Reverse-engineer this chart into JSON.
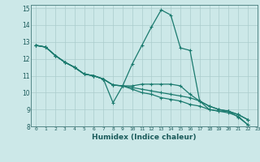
{
  "xlabel": "Humidex (Indice chaleur)",
  "ylabel": "",
  "bg_color": "#cce8e8",
  "grid_color": "#aacccc",
  "line_color": "#1a7a6e",
  "xlim": [
    -0.5,
    23
  ],
  "ylim": [
    8,
    15.2
  ],
  "xticks": [
    0,
    1,
    2,
    3,
    4,
    5,
    6,
    7,
    8,
    9,
    10,
    11,
    12,
    13,
    14,
    15,
    16,
    17,
    18,
    19,
    20,
    21,
    22,
    23
  ],
  "yticks": [
    8,
    9,
    10,
    11,
    12,
    13,
    14,
    15
  ],
  "series": [
    [
      12.8,
      12.7,
      12.2,
      11.8,
      11.5,
      11.1,
      11.0,
      10.8,
      9.4,
      10.4,
      11.7,
      12.8,
      13.9,
      14.9,
      14.6,
      12.65,
      12.5,
      9.5,
      9.0,
      8.9,
      8.9,
      8.55,
      8.1
    ],
    [
      12.8,
      12.7,
      12.2,
      11.8,
      11.5,
      11.1,
      11.0,
      10.8,
      10.45,
      10.4,
      10.4,
      10.5,
      10.5,
      10.5,
      10.5,
      10.4,
      9.9,
      9.5,
      9.2,
      9.0,
      8.9,
      8.7,
      8.4
    ],
    [
      12.8,
      12.7,
      12.2,
      11.8,
      11.5,
      11.1,
      11.0,
      10.8,
      10.45,
      10.4,
      10.3,
      10.2,
      10.1,
      10.0,
      9.9,
      9.8,
      9.7,
      9.5,
      9.2,
      9.0,
      8.9,
      8.7,
      8.4
    ],
    [
      12.8,
      12.7,
      12.2,
      11.8,
      11.5,
      11.1,
      11.0,
      10.8,
      10.45,
      10.4,
      10.2,
      10.0,
      9.9,
      9.7,
      9.6,
      9.5,
      9.3,
      9.2,
      9.0,
      8.9,
      8.8,
      8.6,
      8.1
    ]
  ]
}
